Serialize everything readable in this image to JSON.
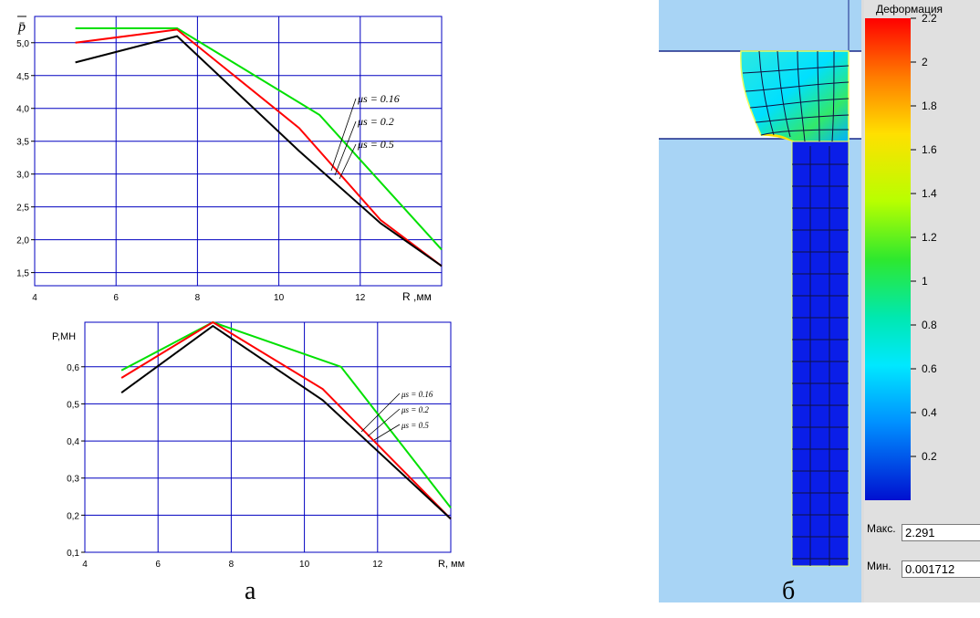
{
  "chart_data": [
    {
      "type": "line",
      "title": "",
      "ylabel": "p̄",
      "xlabel": "R ,мм",
      "xlim": [
        4,
        14
      ],
      "ylim": [
        1.3,
        5.4
      ],
      "xticks": [
        "4",
        "6",
        "8",
        "10",
        "12"
      ],
      "yticks": [
        "1,5",
        "2,0",
        "2,5",
        "3,0",
        "3,5",
        "4,0",
        "4,5",
        "5,0"
      ],
      "grid": true,
      "series": [
        {
          "name": "μs = 0.16",
          "color": "#00e000",
          "x": [
            5,
            7.5,
            11,
            14
          ],
          "y": [
            5.22,
            5.22,
            3.9,
            1.85
          ]
        },
        {
          "name": "μs = 0.2",
          "color": "#ff0000",
          "x": [
            5,
            7.5,
            10.5,
            12.5,
            14
          ],
          "y": [
            5.0,
            5.2,
            3.7,
            2.3,
            1.6
          ]
        },
        {
          "name": "μs = 0.5",
          "color": "#000000",
          "x": [
            5,
            7.5,
            10.5,
            12.5,
            14
          ],
          "y": [
            4.7,
            5.1,
            3.35,
            2.25,
            1.6
          ]
        }
      ],
      "annotations": [
        "μs = 0.16",
        "μs = 0.2",
        "μs = 0.5"
      ]
    },
    {
      "type": "line",
      "title": "",
      "ylabel": "P,МН",
      "xlabel": "R, мм",
      "xlim": [
        4,
        14
      ],
      "ylim": [
        0.1,
        0.72
      ],
      "xticks": [
        "4",
        "6",
        "8",
        "10",
        "12"
      ],
      "yticks": [
        "0,1",
        "0,2",
        "0,3",
        "0,4",
        "0,5",
        "0,6"
      ],
      "grid": true,
      "series": [
        {
          "name": "μs = 0.16",
          "color": "#00e000",
          "x": [
            5,
            7.5,
            11,
            14
          ],
          "y": [
            0.59,
            0.72,
            0.6,
            0.22
          ]
        },
        {
          "name": "μs = 0.2",
          "color": "#ff0000",
          "x": [
            5,
            7.5,
            10.5,
            14
          ],
          "y": [
            0.57,
            0.72,
            0.54,
            0.19
          ]
        },
        {
          "name": "μs = 0.5",
          "color": "#000000",
          "x": [
            5,
            7.5,
            10.5,
            14
          ],
          "y": [
            0.53,
            0.71,
            0.51,
            0.19
          ]
        }
      ],
      "annotations": [
        "μs = 0.16",
        "μs = 0.2",
        "μs = 0.5"
      ]
    },
    {
      "type": "heatmap",
      "title": "Деформация",
      "colorbar": {
        "ticks": [
          "2.2",
          "2",
          "1.8",
          "1.6",
          "1.4",
          "1.2",
          "1",
          "0.8",
          "0.6",
          "0.4",
          "0.2"
        ],
        "range": [
          0,
          2.2
        ]
      }
    }
  ],
  "stats": {
    "max_label": "Макс.",
    "max_value": "2.291",
    "min_label": "Мин.",
    "min_value": "0.001712"
  },
  "captions": {
    "left": "а",
    "right": "б"
  }
}
